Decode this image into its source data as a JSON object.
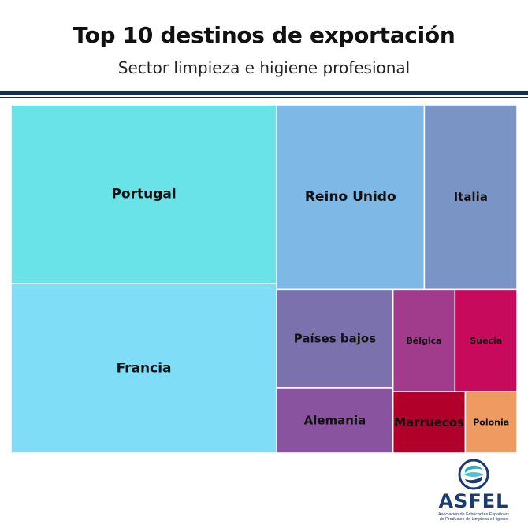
{
  "header": {
    "title": "Top 10 destinos de exportación",
    "subtitle": "Sector limpieza e higiene profesional"
  },
  "chart_data": {
    "type": "treemap",
    "title": "Top 10 destinos de exportación",
    "subtitle": "Sector limpieza e higiene profesional",
    "items": [
      {
        "label": "Portugal",
        "value": 75,
        "color": "#6ae3e8"
      },
      {
        "label": "Francia",
        "value": 71,
        "color": "#7fddf8"
      },
      {
        "label": "Reino Unido",
        "value": 43,
        "color": "#7db8e6"
      },
      {
        "label": "Italia",
        "value": 27,
        "color": "#7b94c6"
      },
      {
        "label": "Países bajos",
        "value": 18,
        "color": "#7b72ad"
      },
      {
        "label": "Bélgica",
        "value": 10,
        "color": "#a13c8c"
      },
      {
        "label": "Suecia",
        "value": 10,
        "color": "#c70a5c"
      },
      {
        "label": "Alemania",
        "value": 12,
        "color": "#8a53a0"
      },
      {
        "label": "Marruecos",
        "value": 7,
        "color": "#b1002a"
      },
      {
        "label": "Polonia",
        "value": 5,
        "color": "#ef9a61"
      }
    ]
  },
  "logo": {
    "name": "ASFEL",
    "tagline_1": "Asociación de Fabricantes Españoles",
    "tagline_2": "de Productos de Limpieza e Higiene"
  }
}
